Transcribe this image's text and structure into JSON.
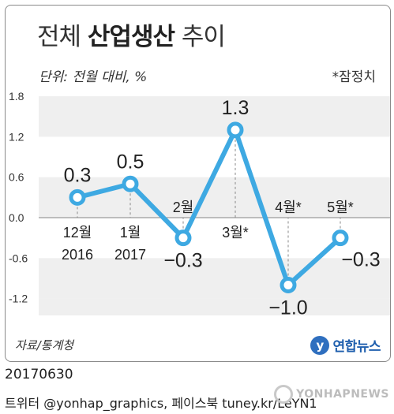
{
  "title": {
    "light_pre": "전체",
    "bold": "산업생산",
    "light_post": "추이"
  },
  "unit_label": "단위: 전월 대비, %",
  "provisional_note": "*잠정치",
  "source": "자료/통계청",
  "logo_text": "연합뉴스",
  "logo_mark": "y",
  "date_stamp": "20170630",
  "twitter_line": "트위터 @yonhap_graphics, 페이스북 tuney.kr/LeYN1",
  "watermark": "YONHAPNEWS",
  "colors": {
    "line": "#3ea9e2",
    "band": "#efefef",
    "grid": "#bdbdbd",
    "text": "#222222"
  },
  "chart_data": {
    "type": "line",
    "categories": [
      "12월\n2016",
      "1월\n2017",
      "2월",
      "3월*",
      "4월*",
      "5월*"
    ],
    "values": [
      0.3,
      0.5,
      -0.3,
      1.3,
      -1.0,
      -0.3
    ],
    "value_labels": [
      "0.3",
      "0.5",
      "−0.3",
      "1.3",
      "−1.0",
      "−0.3"
    ],
    "y_ticks": [
      "1.8",
      "1.2",
      "0.6",
      "0.0",
      "-0.6",
      "-1.2"
    ],
    "y_tick_values": [
      1.8,
      1.2,
      0.6,
      0.0,
      -0.6,
      -1.2
    ],
    "ylim": [
      -1.45,
      1.8
    ],
    "title": "전체 산업생산 추이",
    "ylabel": "단위: 전월 대비, %",
    "grid": true,
    "legend": "none"
  }
}
